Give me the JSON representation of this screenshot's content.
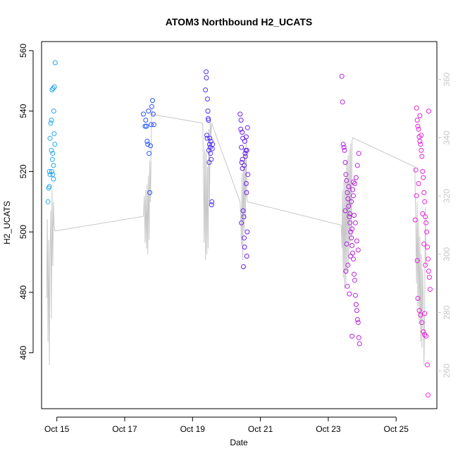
{
  "chart_data": {
    "type": "scatter",
    "title": "ATOM3 Northbound H2_UCATS",
    "xlabel": "Date",
    "ylabel": "H2_UCATS",
    "xlim": [
      14.55,
      26.2
    ],
    "ylim": [
      441.5,
      563
    ],
    "y2lim": [
      247,
      373
    ],
    "x_ticks": [
      15,
      17,
      19,
      21,
      23,
      25
    ],
    "x_tick_labels": [
      "Oct 15",
      "Oct 17",
      "Oct 19",
      "Oct 21",
      "Oct 23",
      "Oct 25"
    ],
    "y_ticks": [
      460,
      480,
      500,
      520,
      540,
      560
    ],
    "y2_ticks": [
      260,
      280,
      300,
      320,
      340,
      360
    ],
    "colors": {
      "background": "#ffffff",
      "axis": "#000000",
      "altitude_trace": "#c8c8c8",
      "right_axis": "#c8c8c8",
      "point_gradient": [
        "#22aaee",
        "#2255ff",
        "#6622ee",
        "#aa22dd",
        "#ee22dd"
      ]
    },
    "series": [
      {
        "points": [
          [
            14.74,
            510
          ],
          [
            14.76,
            514.5
          ],
          [
            14.78,
            520
          ],
          [
            14.8,
            531
          ],
          [
            14.82,
            536
          ],
          [
            14.84,
            527
          ],
          [
            14.86,
            547
          ],
          [
            14.88,
            526
          ],
          [
            14.9,
            522
          ],
          [
            14.92,
            532.5
          ],
          [
            14.78,
            515
          ],
          [
            14.8,
            519
          ],
          [
            14.84,
            537
          ],
          [
            14.87,
            524
          ],
          [
            14.91,
            540
          ],
          [
            14.95,
            556
          ],
          [
            14.93,
            548
          ],
          [
            14.89,
            547.5
          ],
          [
            14.85,
            520
          ],
          [
            14.9,
            517.5
          ],
          [
            14.94,
            529
          ],
          [
            14.88,
            519
          ]
        ]
      },
      {
        "points": [
          [
            17.55,
            539
          ],
          [
            17.6,
            535
          ],
          [
            17.62,
            537
          ],
          [
            17.64,
            535
          ],
          [
            17.66,
            530
          ],
          [
            17.68,
            529
          ],
          [
            17.7,
            540
          ],
          [
            17.72,
            526
          ],
          [
            17.74,
            513
          ],
          [
            17.76,
            528.5
          ],
          [
            17.78,
            535.5
          ],
          [
            17.8,
            541.5
          ],
          [
            17.82,
            543.5
          ],
          [
            17.84,
            539
          ],
          [
            17.86,
            535.5
          ]
        ]
      },
      {
        "points": [
          [
            19.38,
            547
          ],
          [
            19.4,
            553
          ],
          [
            19.41,
            551
          ],
          [
            19.42,
            532
          ],
          [
            19.43,
            531
          ],
          [
            19.44,
            544
          ],
          [
            19.45,
            540
          ],
          [
            19.46,
            537.5
          ],
          [
            19.47,
            537
          ],
          [
            19.48,
            527
          ],
          [
            19.49,
            523
          ],
          [
            19.5,
            529
          ],
          [
            19.51,
            531
          ],
          [
            19.52,
            528
          ],
          [
            19.53,
            526
          ],
          [
            19.54,
            530
          ],
          [
            19.55,
            524
          ],
          [
            19.56,
            509
          ],
          [
            19.57,
            510
          ],
          [
            19.58,
            527.5
          ],
          [
            19.59,
            529
          ]
        ]
      },
      {
        "points": [
          [
            20.4,
            539
          ],
          [
            20.42,
            534
          ],
          [
            20.43,
            537
          ],
          [
            20.44,
            528
          ],
          [
            20.45,
            523
          ],
          [
            20.46,
            533
          ],
          [
            20.47,
            521
          ],
          [
            20.48,
            531
          ],
          [
            20.49,
            507
          ],
          [
            20.5,
            488.5
          ],
          [
            20.51,
            505
          ],
          [
            20.52,
            498
          ],
          [
            20.53,
            495
          ],
          [
            20.54,
            530
          ],
          [
            20.55,
            526
          ],
          [
            20.56,
            525
          ],
          [
            20.57,
            527
          ],
          [
            20.58,
            516
          ],
          [
            20.59,
            513
          ],
          [
            20.6,
            492
          ],
          [
            20.61,
            500
          ],
          [
            20.62,
            534.5
          ],
          [
            20.63,
            519
          ],
          [
            20.47,
            524
          ],
          [
            20.52,
            522
          ],
          [
            20.58,
            531.5
          ],
          [
            20.6,
            527
          ],
          [
            20.44,
            503
          ]
        ]
      },
      {
        "points": [
          [
            23.4,
            551.5
          ],
          [
            23.42,
            543
          ],
          [
            23.44,
            529
          ],
          [
            23.46,
            528
          ],
          [
            23.48,
            527
          ],
          [
            23.5,
            523
          ],
          [
            23.52,
            519
          ],
          [
            23.54,
            517
          ],
          [
            23.56,
            513
          ],
          [
            23.58,
            511
          ],
          [
            23.6,
            508.5
          ],
          [
            23.62,
            505
          ],
          [
            23.64,
            503
          ],
          [
            23.66,
            500
          ],
          [
            23.68,
            498
          ],
          [
            23.7,
            495.5
          ],
          [
            23.72,
            493
          ],
          [
            23.74,
            491
          ],
          [
            23.76,
            486
          ],
          [
            23.78,
            484
          ],
          [
            23.8,
            479
          ],
          [
            23.82,
            476
          ],
          [
            23.84,
            474
          ],
          [
            23.86,
            471
          ],
          [
            23.88,
            470
          ],
          [
            23.9,
            465
          ],
          [
            23.92,
            463
          ],
          [
            23.5,
            507
          ],
          [
            23.54,
            496
          ],
          [
            23.58,
            489
          ],
          [
            23.62,
            479.5
          ],
          [
            23.66,
            492
          ],
          [
            23.7,
            501
          ],
          [
            23.74,
            512
          ],
          [
            23.78,
            516
          ],
          [
            23.82,
            518
          ],
          [
            23.86,
            522
          ],
          [
            23.9,
            526
          ],
          [
            23.64,
            506
          ],
          [
            23.68,
            510
          ],
          [
            23.72,
            514
          ],
          [
            23.76,
            505.5
          ],
          [
            23.8,
            503
          ],
          [
            23.84,
            497
          ],
          [
            23.88,
            494
          ],
          [
            23.52,
            487
          ],
          [
            23.56,
            482
          ],
          [
            23.6,
            515
          ],
          [
            23.7,
            465.5
          ],
          [
            23.74,
            516.5
          ]
        ]
      },
      {
        "points": [
          [
            25.6,
            541
          ],
          [
            25.62,
            537
          ],
          [
            25.64,
            535
          ],
          [
            25.66,
            534
          ],
          [
            25.68,
            531.5
          ],
          [
            25.7,
            530
          ],
          [
            25.72,
            529
          ],
          [
            25.74,
            527
          ],
          [
            25.76,
            525
          ],
          [
            25.78,
            520
          ],
          [
            25.8,
            518
          ],
          [
            25.82,
            513
          ],
          [
            25.84,
            510
          ],
          [
            25.86,
            505
          ],
          [
            25.88,
            503
          ],
          [
            25.9,
            500
          ],
          [
            25.92,
            495
          ],
          [
            25.94,
            491
          ],
          [
            25.96,
            487
          ],
          [
            25.98,
            485
          ],
          [
            26.0,
            481
          ],
          [
            25.64,
            478
          ],
          [
            25.68,
            474
          ],
          [
            25.72,
            472.5
          ],
          [
            25.76,
            470
          ],
          [
            25.8,
            467
          ],
          [
            25.84,
            466
          ],
          [
            25.88,
            465.5
          ],
          [
            25.7,
            538.5
          ],
          [
            25.74,
            532
          ],
          [
            25.78,
            506
          ],
          [
            25.82,
            496
          ],
          [
            25.86,
            489
          ],
          [
            25.66,
            516
          ],
          [
            25.62,
            490.5
          ],
          [
            25.84,
            473
          ],
          [
            25.92,
            456
          ],
          [
            25.94,
            446
          ],
          [
            25.58,
            520.5
          ],
          [
            25.56,
            504
          ],
          [
            25.6,
            512
          ],
          [
            25.96,
            540
          ]
        ]
      }
    ],
    "altitude_trace": {
      "description_units": "right axis",
      "points": [
        [
          14.7,
          285
        ],
        [
          14.72,
          312
        ],
        [
          14.74,
          270
        ],
        [
          14.76,
          305
        ],
        [
          14.78,
          262
        ],
        [
          14.8,
          300
        ],
        [
          14.82,
          315
        ],
        [
          14.84,
          278
        ],
        [
          14.86,
          322
        ],
        [
          14.88,
          296
        ],
        [
          14.9,
          318
        ],
        [
          14.92,
          310
        ],
        [
          14.94,
          308
        ],
        [
          17.55,
          313
        ],
        [
          17.58,
          320
        ],
        [
          17.6,
          304
        ],
        [
          17.62,
          322
        ],
        [
          17.64,
          302
        ],
        [
          17.66,
          324
        ],
        [
          17.68,
          300
        ],
        [
          17.7,
          327
        ],
        [
          17.72,
          305
        ],
        [
          17.74,
          332
        ],
        [
          17.76,
          318
        ],
        [
          17.78,
          338
        ],
        [
          17.8,
          350
        ],
        [
          17.82,
          348
        ],
        [
          19.3,
          345
        ],
        [
          19.32,
          330
        ],
        [
          19.34,
          304
        ],
        [
          19.36,
          336
        ],
        [
          19.38,
          298
        ],
        [
          19.4,
          335
        ],
        [
          19.42,
          300
        ],
        [
          19.44,
          330
        ],
        [
          19.46,
          302
        ],
        [
          19.48,
          343
        ],
        [
          19.5,
          318
        ],
        [
          19.52,
          346
        ],
        [
          19.54,
          340
        ],
        [
          19.56,
          345
        ],
        [
          20.4,
          318
        ],
        [
          20.42,
          313
        ],
        [
          20.44,
          303
        ],
        [
          20.46,
          328
        ],
        [
          20.48,
          298
        ],
        [
          20.5,
          330
        ],
        [
          20.52,
          308
        ],
        [
          20.54,
          336
        ],
        [
          20.56,
          312
        ],
        [
          20.58,
          340
        ],
        [
          20.6,
          320
        ],
        [
          20.62,
          318
        ],
        [
          23.38,
          310
        ],
        [
          23.4,
          302
        ],
        [
          23.42,
          322
        ],
        [
          23.44,
          292
        ],
        [
          23.46,
          325
        ],
        [
          23.48,
          288
        ],
        [
          23.5,
          326
        ],
        [
          23.52,
          290
        ],
        [
          23.54,
          332
        ],
        [
          23.56,
          294
        ],
        [
          23.58,
          334
        ],
        [
          23.6,
          296
        ],
        [
          23.62,
          336
        ],
        [
          23.64,
          302
        ],
        [
          23.66,
          338
        ],
        [
          23.68,
          305
        ],
        [
          23.7,
          339
        ],
        [
          23.72,
          340
        ],
        [
          25.55,
          330
        ],
        [
          25.58,
          310
        ],
        [
          25.6,
          290
        ],
        [
          25.62,
          318
        ],
        [
          25.64,
          282
        ],
        [
          25.66,
          312
        ],
        [
          25.68,
          276
        ],
        [
          25.7,
          306
        ],
        [
          25.72,
          270
        ],
        [
          25.74,
          300
        ],
        [
          25.76,
          268
        ],
        [
          25.78,
          295
        ],
        [
          25.8,
          284
        ],
        [
          25.82,
          262
        ],
        [
          25.84,
          280
        ],
        [
          25.86,
          316
        ],
        [
          25.88,
          296
        ]
      ]
    }
  }
}
